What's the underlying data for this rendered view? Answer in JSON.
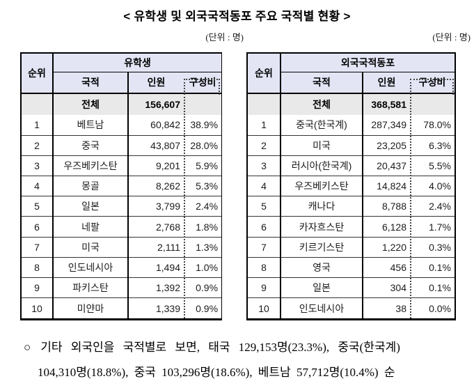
{
  "title": "< 유학생 및 외국국적동포 주요 국적별 현황 >",
  "unit_label_left": "(단위 : 명)",
  "unit_label_right": "(단위 : 명)",
  "colors": {
    "header_bg": "#e3e5f5",
    "total_row_bg": "#e9e9e9",
    "border": "#000000",
    "highlight_box_dotted": "#444444"
  },
  "tables": [
    {
      "group_header": "유학생",
      "columns": {
        "rank": "순위",
        "nationality": "국적",
        "count": "인원",
        "share": "구성비"
      },
      "total": {
        "label": "전체",
        "count": "156,607",
        "share": ""
      },
      "rows": [
        {
          "rank": "1",
          "nationality": "베트남",
          "count": "60,842",
          "share": "38.9%"
        },
        {
          "rank": "2",
          "nationality": "중국",
          "count": "43,807",
          "share": "28.0%"
        },
        {
          "rank": "3",
          "nationality": "우즈베키스탄",
          "count": "9,201",
          "share": "5.9%"
        },
        {
          "rank": "4",
          "nationality": "몽골",
          "count": "8,262",
          "share": "5.3%"
        },
        {
          "rank": "5",
          "nationality": "일본",
          "count": "3,799",
          "share": "2.4%"
        },
        {
          "rank": "6",
          "nationality": "네팔",
          "count": "2,768",
          "share": "1.8%"
        },
        {
          "rank": "7",
          "nationality": "미국",
          "count": "2,111",
          "share": "1.3%"
        },
        {
          "rank": "8",
          "nationality": "인도네시아",
          "count": "1,494",
          "share": "1.0%"
        },
        {
          "rank": "9",
          "nationality": "파키스탄",
          "count": "1,392",
          "share": "0.9%"
        },
        {
          "rank": "10",
          "nationality": "미얀마",
          "count": "1,339",
          "share": "0.9%"
        }
      ]
    },
    {
      "group_header": "외국국적동포",
      "columns": {
        "rank": "순위",
        "nationality": "국적",
        "count": "인원",
        "share": "구성비"
      },
      "total": {
        "label": "전체",
        "count": "368,581",
        "share": ""
      },
      "rows": [
        {
          "rank": "1",
          "nationality": "중국(한국계)",
          "count": "287,349",
          "share": "78.0%"
        },
        {
          "rank": "2",
          "nationality": "미국",
          "count": "23,205",
          "share": "6.3%"
        },
        {
          "rank": "3",
          "nationality": "러시아(한국계)",
          "count": "20,437",
          "share": "5.5%"
        },
        {
          "rank": "4",
          "nationality": "우즈베키스탄",
          "count": "14,824",
          "share": "4.0%"
        },
        {
          "rank": "5",
          "nationality": "캐나다",
          "count": "8,788",
          "share": "2.4%"
        },
        {
          "rank": "6",
          "nationality": "카자흐스탄",
          "count": "6,128",
          "share": "1.7%"
        },
        {
          "rank": "7",
          "nationality": "키르기스탄",
          "count": "1,220",
          "share": "0.3%"
        },
        {
          "rank": "8",
          "nationality": "영국",
          "count": "456",
          "share": "0.1%"
        },
        {
          "rank": "9",
          "nationality": "일본",
          "count": "304",
          "share": "0.1%"
        },
        {
          "rank": "10",
          "nationality": "인도네시아",
          "count": "38",
          "share": "0.0%"
        }
      ]
    }
  ],
  "footnote": {
    "bullet": "○",
    "line1": "기타 외국인을 국적별로 보면, 태국 129,153명(23.3%), 중국(한국계)",
    "line2": "104,310명(18.8%), 중국 103,296명(18.6%), 베트남 57,712명(10.4%) 순"
  }
}
